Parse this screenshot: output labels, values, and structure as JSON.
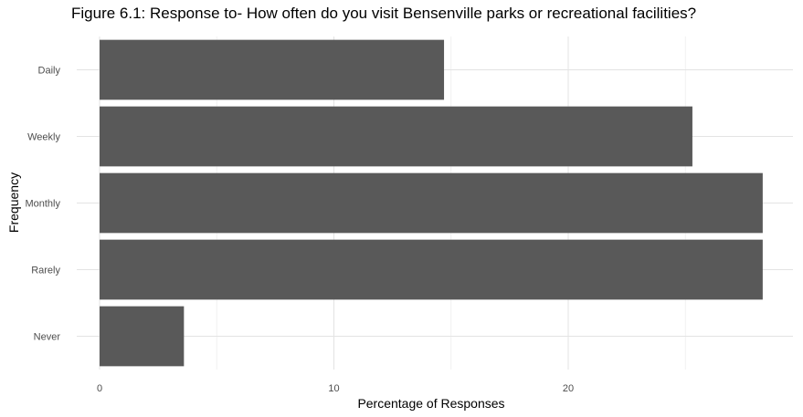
{
  "chart_data": {
    "type": "bar",
    "orientation": "horizontal",
    "title": "Figure 6.1: Response to- How often do you visit Bensenville parks or recreational facilities?",
    "xlabel": "Percentage of Responses",
    "ylabel": "Frequency",
    "categories": [
      "Daily",
      "Weekly",
      "Monthly",
      "Rarely",
      "Never"
    ],
    "values": [
      14.7,
      25.3,
      28.3,
      28.3,
      3.6
    ],
    "x_ticks": [
      0,
      10,
      20
    ],
    "xlim": [
      0,
      29.2
    ],
    "bar_color": "#595959",
    "grid": true,
    "legend": "none"
  }
}
